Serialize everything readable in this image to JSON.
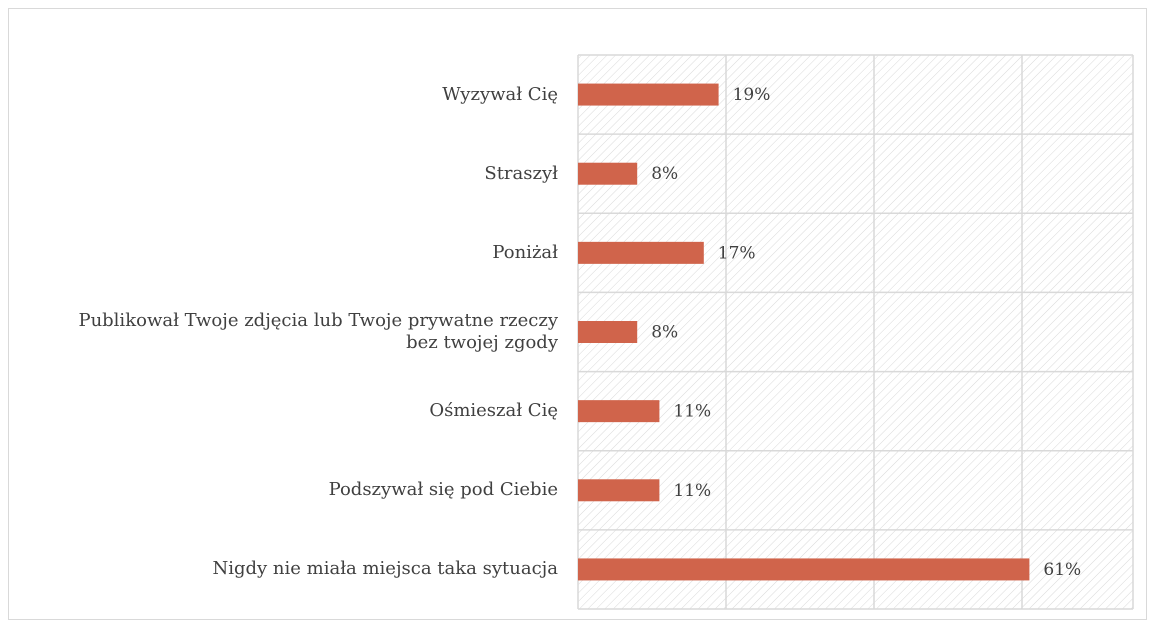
{
  "chart_data": {
    "type": "bar",
    "orientation": "horizontal",
    "categories": [
      "Wyzywał Cię",
      "Straszył",
      "Poniżał",
      "Publikował Twoje zdjęcia lub Twoje prywatne rzeczy bez twojej zgody",
      "Ośmieszał Cię",
      "Podszywał się pod Ciebie",
      "Nigdy nie miała miejsca taka sytuacja"
    ],
    "values": [
      19,
      8,
      17,
      8,
      11,
      11,
      61
    ],
    "value_labels": [
      "19%",
      "8%",
      "17%",
      "8%",
      "11%",
      "11%",
      "61%"
    ],
    "color": "#d0644b",
    "xlim": [
      0,
      75
    ],
    "xticks": [
      0,
      20,
      40,
      60
    ],
    "grid": true
  }
}
